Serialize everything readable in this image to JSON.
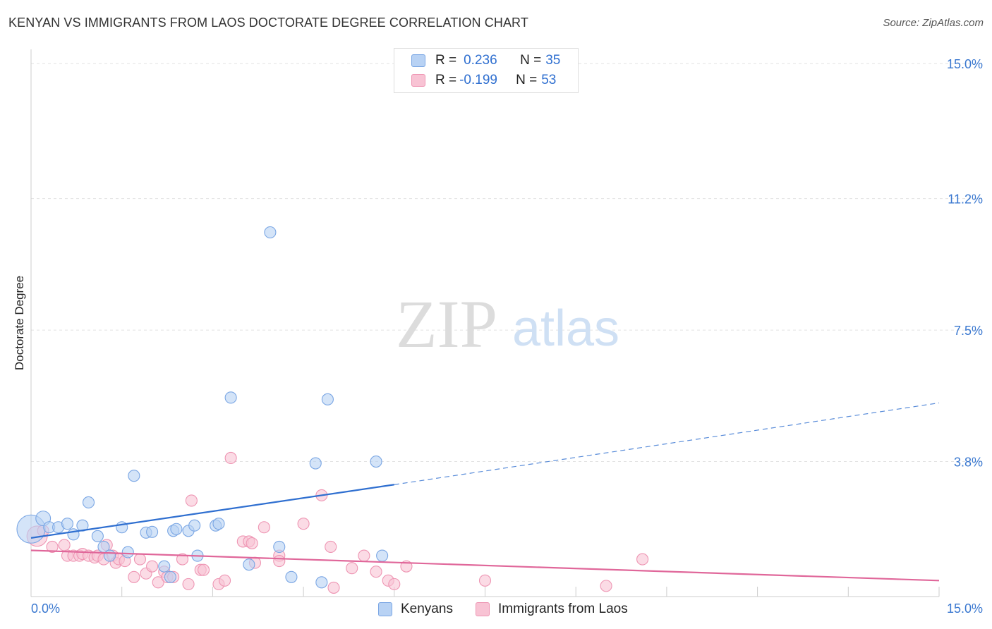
{
  "title": "KENYAN VS IMMIGRANTS FROM LAOS DOCTORATE DEGREE CORRELATION CHART",
  "source": "Source: ZipAtlas.com",
  "watermark": {
    "zip": "ZIP",
    "atlas": "atlas"
  },
  "legend": {
    "r_label": "R =",
    "n_label": "N =",
    "rows": [
      {
        "r": "0.236",
        "n": "35"
      },
      {
        "r": "-0.199",
        "n": "53"
      }
    ]
  },
  "bottom_legend": {
    "kenyans": "Kenyans",
    "laos": "Immigrants from Laos"
  },
  "colors": {
    "kenyan_fill": "#b8d2f4",
    "kenyan_stroke": "#7aa6e4",
    "kenyan_line": "#2f6fd0",
    "laos_fill": "#f8c3d4",
    "laos_stroke": "#ee95b3",
    "laos_line": "#e0679a",
    "tick_text": "#3a78d0",
    "grid": "#e2e2e2"
  },
  "chart_data": {
    "type": "scatter",
    "title": "KENYAN VS IMMIGRANTS FROM LAOS DOCTORATE DEGREE CORRELATION CHART",
    "xlabel": "",
    "ylabel": "Doctorate Degree",
    "xlim": [
      0,
      15
    ],
    "ylim": [
      0,
      15.4
    ],
    "x_tick_labels": [
      {
        "value": 0,
        "label": "0.0%"
      },
      {
        "value": 15,
        "label": "15.0%"
      }
    ],
    "y_tick_labels": [
      {
        "value": 3.8,
        "label": "3.8%"
      },
      {
        "value": 7.5,
        "label": "7.5%"
      },
      {
        "value": 11.2,
        "label": "11.2%"
      },
      {
        "value": 15.0,
        "label": "15.0%"
      }
    ],
    "series": [
      {
        "name": "Kenyans",
        "r": 0.236,
        "n": 35,
        "trend": {
          "x0": 0,
          "y0": 1.65,
          "x1": 6.0,
          "y1": 3.15,
          "dash_to_x": 15.0,
          "dash_to_y": 5.45
        },
        "points": [
          [
            0.0,
            1.9,
            2.5
          ],
          [
            0.2,
            2.2,
            1.3
          ],
          [
            0.3,
            1.95,
            1
          ],
          [
            0.45,
            1.95,
            1
          ],
          [
            0.6,
            2.05,
            1
          ],
          [
            0.7,
            1.75,
            1
          ],
          [
            0.85,
            2.0,
            1
          ],
          [
            0.95,
            2.65,
            1
          ],
          [
            1.1,
            1.7,
            1
          ],
          [
            1.2,
            1.4,
            1
          ],
          [
            1.3,
            1.15,
            1
          ],
          [
            1.5,
            1.95,
            1
          ],
          [
            1.6,
            1.25,
            1
          ],
          [
            1.7,
            3.4,
            1
          ],
          [
            1.9,
            1.8,
            1
          ],
          [
            2.0,
            1.82,
            1
          ],
          [
            2.2,
            0.85,
            1
          ],
          [
            2.3,
            0.55,
            1
          ],
          [
            2.35,
            1.85,
            1
          ],
          [
            2.4,
            1.9,
            1
          ],
          [
            2.6,
            1.85,
            1
          ],
          [
            2.7,
            2.0,
            1
          ],
          [
            2.75,
            1.15,
            1
          ],
          [
            3.05,
            2.0,
            1
          ],
          [
            3.1,
            2.05,
            1
          ],
          [
            3.3,
            5.6,
            1
          ],
          [
            3.6,
            0.9,
            1
          ],
          [
            3.95,
            10.25,
            1
          ],
          [
            4.1,
            1.4,
            1
          ],
          [
            4.3,
            0.55,
            1
          ],
          [
            4.7,
            3.75,
            1
          ],
          [
            4.8,
            0.4,
            1
          ],
          [
            4.9,
            5.55,
            1
          ],
          [
            5.7,
            3.8,
            1
          ],
          [
            5.8,
            1.15,
            1
          ]
        ]
      },
      {
        "name": "Immigrants from Laos",
        "r": -0.199,
        "n": 53,
        "trend": {
          "x0": 0,
          "y0": 1.3,
          "x1": 15.0,
          "y1": 0.45
        },
        "points": [
          [
            0.1,
            1.7,
            1.8
          ],
          [
            0.2,
            1.85,
            1
          ],
          [
            0.35,
            1.4,
            1
          ],
          [
            0.55,
            1.45,
            1
          ],
          [
            0.6,
            1.15,
            1
          ],
          [
            0.7,
            1.15,
            1
          ],
          [
            0.8,
            1.15,
            1
          ],
          [
            0.85,
            1.2,
            1
          ],
          [
            0.95,
            1.15,
            1
          ],
          [
            1.05,
            1.1,
            1
          ],
          [
            1.1,
            1.15,
            1
          ],
          [
            1.2,
            1.05,
            1
          ],
          [
            1.25,
            1.45,
            1
          ],
          [
            1.35,
            1.15,
            1
          ],
          [
            1.4,
            0.95,
            1
          ],
          [
            1.45,
            1.05,
            1
          ],
          [
            1.55,
            1.0,
            1
          ],
          [
            1.7,
            0.55,
            1
          ],
          [
            1.8,
            1.05,
            1
          ],
          [
            1.9,
            0.65,
            1
          ],
          [
            2.0,
            0.85,
            1
          ],
          [
            2.1,
            0.4,
            1
          ],
          [
            2.2,
            0.7,
            1
          ],
          [
            2.25,
            0.55,
            1
          ],
          [
            2.35,
            0.55,
            1
          ],
          [
            2.5,
            1.05,
            1
          ],
          [
            2.6,
            0.35,
            1
          ],
          [
            2.65,
            2.7,
            1
          ],
          [
            2.8,
            0.75,
            1
          ],
          [
            2.85,
            0.75,
            1
          ],
          [
            3.1,
            0.35,
            1
          ],
          [
            3.2,
            0.45,
            1
          ],
          [
            3.3,
            3.9,
            1
          ],
          [
            3.5,
            1.55,
            1
          ],
          [
            3.6,
            1.55,
            1
          ],
          [
            3.65,
            1.5,
            1
          ],
          [
            3.7,
            0.95,
            1
          ],
          [
            3.85,
            1.95,
            1
          ],
          [
            4.1,
            1.15,
            1
          ],
          [
            4.5,
            2.05,
            1
          ],
          [
            4.8,
            2.85,
            1
          ],
          [
            4.95,
            1.4,
            1
          ],
          [
            5.0,
            0.25,
            1
          ],
          [
            5.3,
            0.8,
            1
          ],
          [
            5.5,
            1.15,
            1
          ],
          [
            5.7,
            0.7,
            1
          ],
          [
            5.9,
            0.45,
            1
          ],
          [
            6.0,
            0.35,
            1
          ],
          [
            6.2,
            0.85,
            1
          ],
          [
            7.5,
            0.45,
            1
          ],
          [
            9.5,
            0.3,
            1
          ],
          [
            10.1,
            1.05,
            1
          ],
          [
            4.1,
            1.0,
            1
          ]
        ]
      }
    ]
  }
}
